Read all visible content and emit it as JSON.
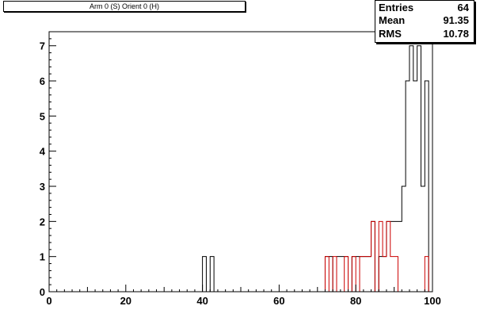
{
  "title": "Arm 0 (S) Orient 0 (H)",
  "stats": [
    {
      "label": "Entries",
      "value": "64"
    },
    {
      "label": "Mean",
      "value": "91.35"
    },
    {
      "label": "RMS",
      "value": "10.78"
    }
  ],
  "colors": {
    "black": "#000000",
    "red": "#cc0000"
  },
  "chart_data": {
    "type": "step-histogram",
    "xlim": [
      0,
      100
    ],
    "ylim": [
      0,
      7.4
    ],
    "x_ticks": [
      "0",
      "20",
      "40",
      "60",
      "80",
      "100"
    ],
    "y_ticks": [
      "0",
      "1",
      "2",
      "3",
      "4",
      "5",
      "6",
      "7"
    ],
    "bin_width": 1,
    "series": [
      {
        "color": "#000000",
        "bins_low_edges": [
          40,
          41,
          42,
          43,
          44,
          72,
          73,
          74,
          75,
          76,
          77,
          78,
          79,
          80,
          81,
          82,
          83,
          84,
          85,
          86,
          87,
          88,
          89,
          90,
          91,
          92,
          93,
          94,
          95,
          96,
          97,
          98,
          99
        ],
        "values": [
          1,
          0,
          1,
          0,
          0,
          1,
          1,
          0,
          1,
          1,
          1,
          0,
          1,
          1,
          1,
          1,
          1,
          2,
          0,
          1,
          1,
          2,
          2,
          2,
          2,
          3,
          6,
          7,
          6,
          7,
          3,
          6,
          0
        ]
      },
      {
        "color": "#cc0000",
        "bins_low_edges": [
          72,
          73,
          74,
          75,
          76,
          77,
          78,
          79,
          80,
          81,
          82,
          83,
          84,
          85,
          86,
          87,
          88,
          89,
          90,
          91,
          92,
          93,
          94,
          95,
          96,
          97,
          98,
          99
        ],
        "values": [
          1,
          0,
          1,
          0,
          0,
          1,
          0,
          1,
          0,
          1,
          1,
          1,
          2,
          0,
          2,
          1,
          2,
          1,
          1,
          0,
          0,
          0,
          0,
          0,
          0,
          0,
          1,
          0
        ]
      }
    ]
  }
}
